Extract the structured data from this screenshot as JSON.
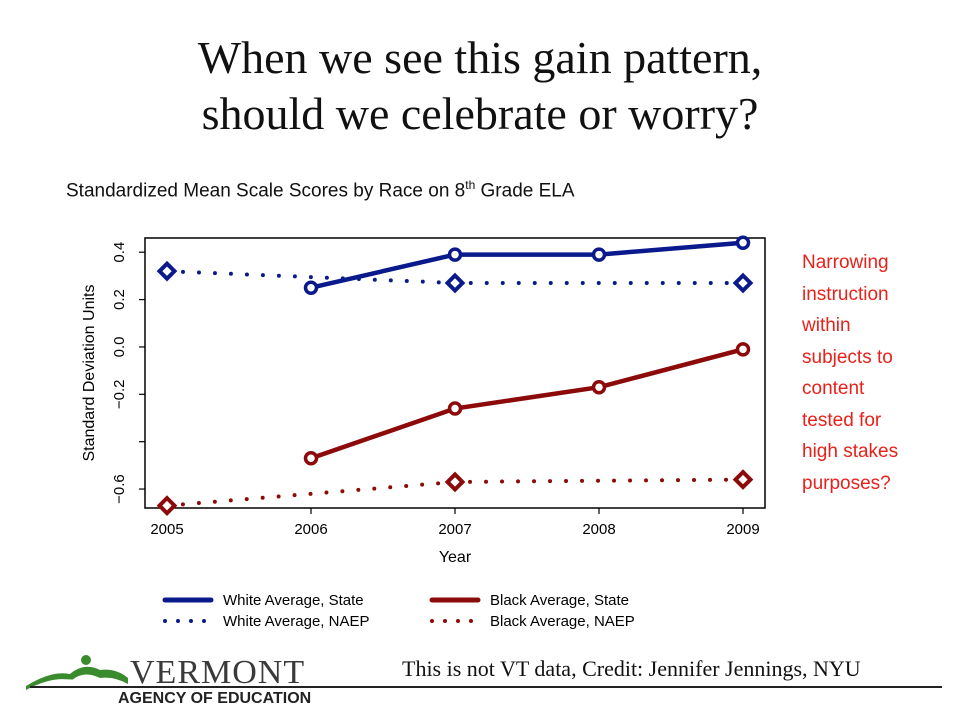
{
  "slide": {
    "title_line1": "When we see this gain pattern,",
    "title_line2": "should we celebrate or worry?",
    "note_lines": [
      "Narrowing",
      "instruction",
      "within",
      "subjects to",
      "content",
      "tested for",
      "high stakes",
      "purposes?"
    ],
    "credit": "This is not VT data, Credit: Jennifer Jennings, NYU",
    "note_color": "#e8211b"
  },
  "logo": {
    "name": "VERMONT",
    "subtitle": "AGENCY OF EDUCATION",
    "icon": "green-mountain-icon",
    "color": "#3a8a2e"
  },
  "chart_data": {
    "type": "line",
    "title": "Standardized Mean Scale Scores by Race on 8",
    "title_sup": "th",
    "title_suffix": " Grade ELA",
    "xlabel": "Year",
    "ylabel": "Standard Deviation Units",
    "x_ticks": [
      "2005",
      "2006",
      "2007",
      "2008",
      "2009"
    ],
    "y_ticks": [
      "-0.6",
      "-0.2",
      "0.0",
      "0.2",
      "0.4"
    ],
    "xlim": [
      2005,
      2009
    ],
    "ylim": [
      -0.68,
      0.46
    ],
    "grid": false,
    "legend_position": "bottom",
    "series": [
      {
        "name": "White Average, State",
        "x": [
          2006,
          2007,
          2008,
          2009
        ],
        "y": [
          0.25,
          0.39,
          0.39,
          0.44
        ],
        "color": "#0a1a8c",
        "style": "solid"
      },
      {
        "name": "Black Average, State",
        "x": [
          2006,
          2007,
          2008,
          2009
        ],
        "y": [
          -0.47,
          -0.26,
          -0.17,
          -0.01
        ],
        "color": "#8c0a0a",
        "style": "solid"
      },
      {
        "name": "White Average, NAEP",
        "x": [
          2005,
          2007,
          2009
        ],
        "y": [
          0.32,
          0.27,
          0.27
        ],
        "color": "#0a1a8c",
        "style": "dotted"
      },
      {
        "name": "Black Average, NAEP",
        "x": [
          2005,
          2007,
          2009
        ],
        "y": [
          -0.67,
          -0.57,
          -0.56
        ],
        "color": "#8c0a0a",
        "style": "dotted"
      }
    ]
  }
}
